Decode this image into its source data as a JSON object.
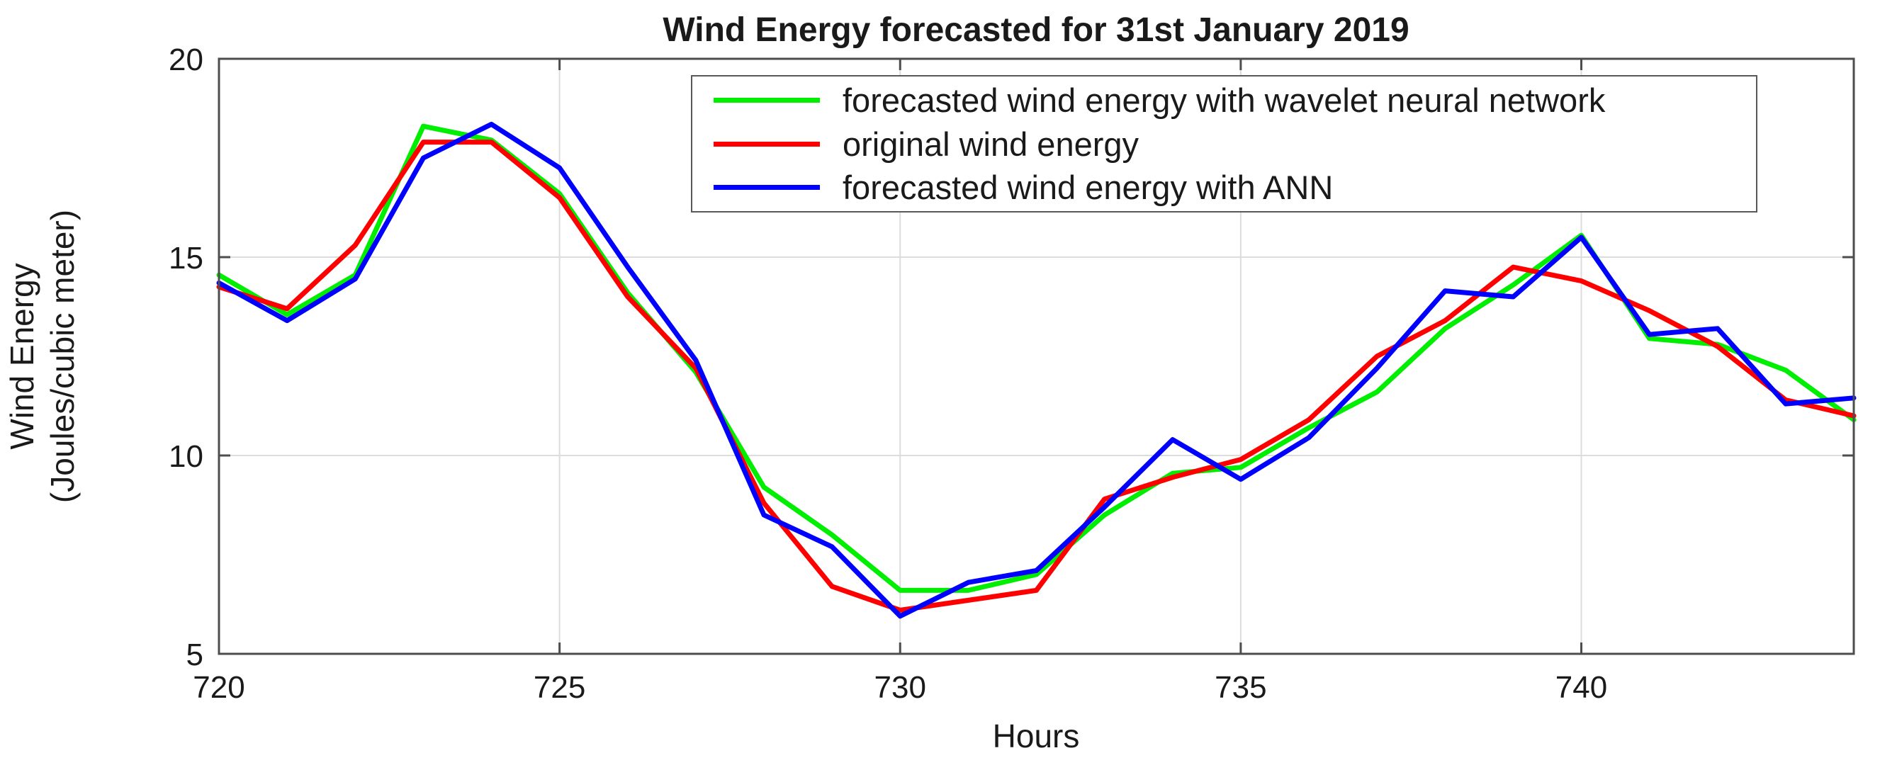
{
  "chart_data": {
    "type": "line",
    "title": "Wind Energy forecasted for 31st January 2019",
    "xlabel": "Hours",
    "ylabel_lines": [
      "Wind Energy",
      "(Joules/cubic meter)"
    ],
    "xlim": [
      720,
      744
    ],
    "ylim": [
      5,
      20
    ],
    "xticks": [
      720,
      725,
      730,
      735,
      740
    ],
    "yticks": [
      5,
      10,
      15,
      20
    ],
    "grid": true,
    "legend_position": "upper center-right",
    "x": [
      720,
      721,
      722,
      723,
      724,
      725,
      726,
      727,
      728,
      729,
      730,
      731,
      732,
      733,
      734,
      735,
      736,
      737,
      738,
      739,
      740,
      741,
      742,
      743,
      744
    ],
    "series": [
      {
        "name": "forecasted wind energy with wavelet neural network",
        "color": "#00ee00",
        "values": [
          14.55,
          13.55,
          14.55,
          18.3,
          17.95,
          16.6,
          14.1,
          12.1,
          9.2,
          8.0,
          6.6,
          6.6,
          7.0,
          8.5,
          9.55,
          9.7,
          10.7,
          11.6,
          13.2,
          14.3,
          15.55,
          12.95,
          12.8,
          12.15,
          10.9
        ]
      },
      {
        "name": "original wind energy",
        "color": "#ff0000",
        "values": [
          14.25,
          13.7,
          15.3,
          17.9,
          17.9,
          16.5,
          14.0,
          12.2,
          8.8,
          6.7,
          6.1,
          6.35,
          6.6,
          8.9,
          9.45,
          9.9,
          10.9,
          12.5,
          13.4,
          14.75,
          14.4,
          13.65,
          12.75,
          11.4,
          11.0
        ]
      },
      {
        "name": "forecasted wind energy with ANN",
        "color": "#0000ff",
        "values": [
          14.35,
          13.4,
          14.45,
          17.5,
          18.35,
          17.25,
          14.75,
          12.4,
          8.5,
          7.7,
          5.95,
          6.8,
          7.1,
          8.7,
          10.4,
          9.4,
          10.45,
          12.2,
          14.15,
          14.0,
          15.5,
          13.05,
          13.2,
          11.3,
          11.45
        ]
      }
    ],
    "colors": {
      "axis_box": "#4d4d4d",
      "grid": "#dcdcdc",
      "text": "#1a1a1a"
    }
  }
}
